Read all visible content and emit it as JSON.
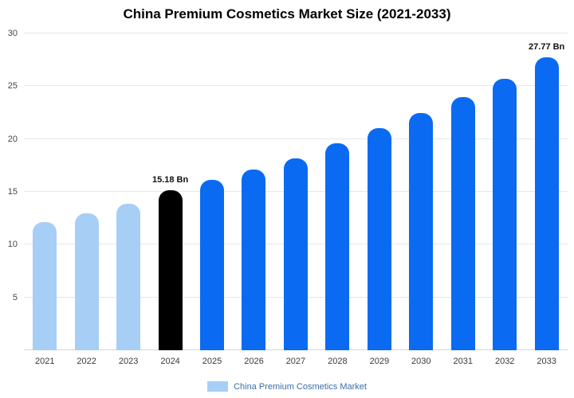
{
  "title": "China Premium Cosmetics Market Size (2021-2033)",
  "chart_data": {
    "type": "bar",
    "categories": [
      "2021",
      "2022",
      "2023",
      "2024",
      "2025",
      "2026",
      "2027",
      "2028",
      "2029",
      "2030",
      "2031",
      "2032",
      "2033"
    ],
    "values": [
      12.1,
      13.0,
      13.9,
      15.18,
      16.1,
      17.1,
      18.2,
      19.6,
      21.0,
      22.5,
      24.0,
      25.7,
      27.77
    ],
    "bar_colors": [
      "#A7CEF5",
      "#A7CEF5",
      "#A7CEF5",
      "#000000",
      "#0A6BF2",
      "#0A6BF2",
      "#0A6BF2",
      "#0A6BF2",
      "#0A6BF2",
      "#0A6BF2",
      "#0A6BF2",
      "#0A6BF2",
      "#0A6BF2"
    ],
    "title": "China Premium Cosmetics Market Size (2021-2033)",
    "xlabel": "",
    "ylabel": "",
    "ylim": [
      0,
      30
    ],
    "yticks": [
      5,
      10,
      15,
      20,
      25,
      30
    ],
    "grid": true,
    "annotations": [
      {
        "category": "2024",
        "text": "15.18 Bn"
      },
      {
        "category": "2033",
        "text": "27.77 Bn"
      }
    ],
    "legend": {
      "label": "China Premium Cosmetics Market",
      "position": "bottom",
      "swatch_color": "#A7CEF5"
    }
  }
}
